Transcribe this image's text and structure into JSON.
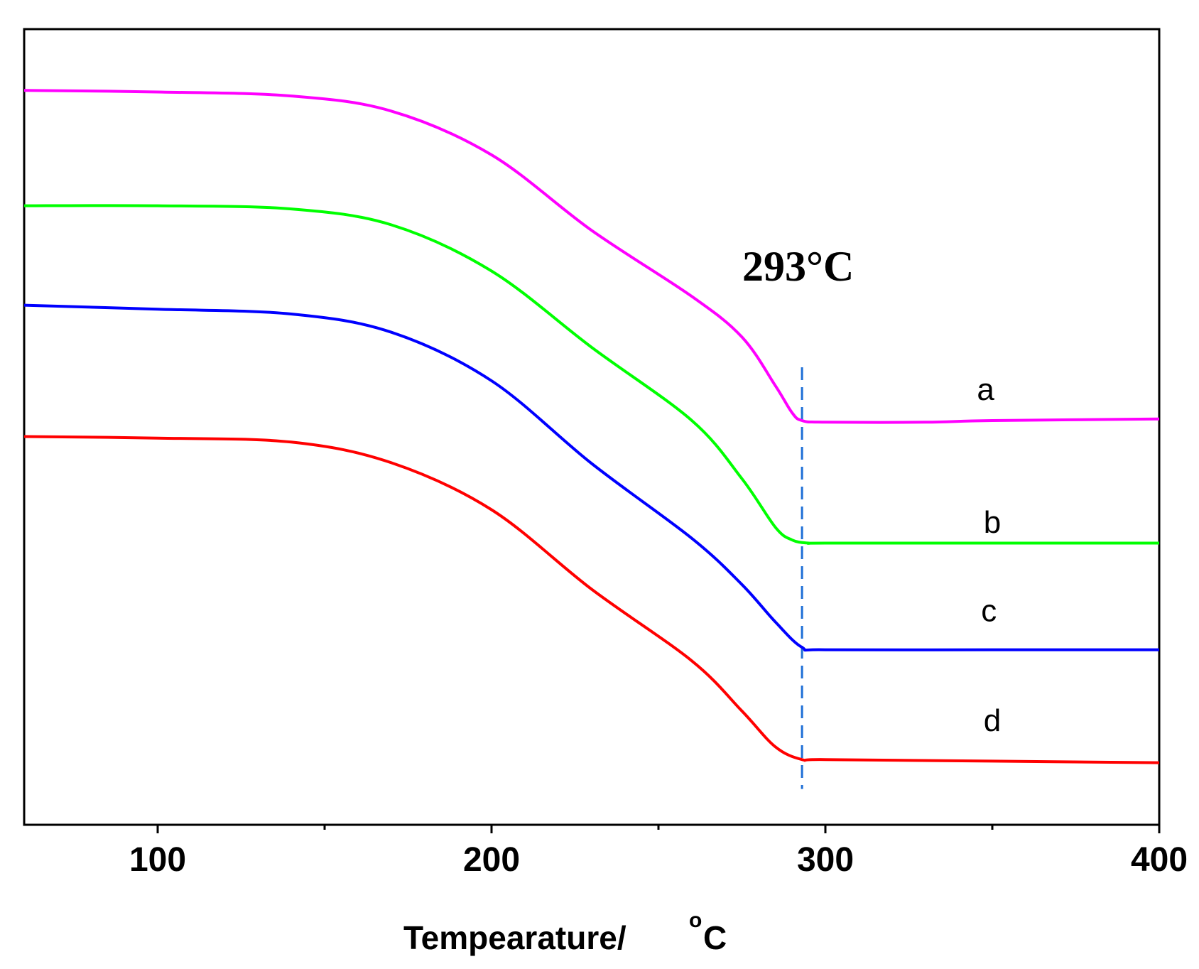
{
  "chart_data": {
    "type": "line",
    "title": "",
    "xlabel": "Tempearature/",
    "xlabel_unit_sup": "o",
    "xlabel_unit": "C",
    "ylabel": "",
    "xlim": [
      60,
      400
    ],
    "ylim": [
      0,
      100
    ],
    "x_ticks": [
      100,
      200,
      300,
      400
    ],
    "x_tick_labels": [
      "100",
      "200",
      "300",
      "400"
    ],
    "x_minor_ticks": [
      150,
      250,
      350
    ],
    "grid": false,
    "annotation": {
      "text": "293°C",
      "x": 293
    },
    "series": [
      {
        "name": "a",
        "color": "#ff00ff",
        "points": [
          [
            60,
            92.3
          ],
          [
            100,
            92.1
          ],
          [
            140,
            91.6
          ],
          [
            170,
            89.7
          ],
          [
            200,
            84.2
          ],
          [
            230,
            74.7
          ],
          [
            260,
            66.4
          ],
          [
            275,
            61.3
          ],
          [
            285,
            55.2
          ],
          [
            290,
            51.8
          ],
          [
            293,
            50.8
          ],
          [
            300,
            50.6
          ],
          [
            330,
            50.6
          ],
          [
            350,
            50.8
          ],
          [
            400,
            51.0
          ]
        ]
      },
      {
        "name": "b",
        "color": "#00ff00",
        "points": [
          [
            60,
            77.8
          ],
          [
            100,
            77.8
          ],
          [
            140,
            77.4
          ],
          [
            170,
            75.4
          ],
          [
            200,
            69.6
          ],
          [
            230,
            60.0
          ],
          [
            260,
            50.8
          ],
          [
            275,
            43.5
          ],
          [
            285,
            37.4
          ],
          [
            290,
            35.8
          ],
          [
            295,
            35.4
          ],
          [
            300,
            35.4
          ],
          [
            350,
            35.4
          ],
          [
            400,
            35.4
          ]
        ]
      },
      {
        "name": "c",
        "color": "#0000ff",
        "points": [
          [
            60,
            65.3
          ],
          [
            100,
            64.8
          ],
          [
            140,
            64.2
          ],
          [
            170,
            61.9
          ],
          [
            200,
            55.8
          ],
          [
            230,
            45.4
          ],
          [
            260,
            36.0
          ],
          [
            275,
            30.2
          ],
          [
            285,
            25.5
          ],
          [
            293,
            22.3
          ],
          [
            300,
            22.0
          ],
          [
            350,
            22.0
          ],
          [
            400,
            22.0
          ]
        ]
      },
      {
        "name": "d",
        "color": "#ff0000",
        "points": [
          [
            60,
            48.8
          ],
          [
            100,
            48.6
          ],
          [
            140,
            48.1
          ],
          [
            170,
            45.5
          ],
          [
            200,
            39.6
          ],
          [
            230,
            29.6
          ],
          [
            260,
            20.6
          ],
          [
            275,
            14.3
          ],
          [
            285,
            9.8
          ],
          [
            293,
            8.2
          ],
          [
            300,
            8.2
          ],
          [
            350,
            8.0
          ],
          [
            400,
            7.8
          ]
        ]
      }
    ],
    "vline": {
      "x": 293,
      "y_range": [
        4.5,
        57.5
      ],
      "color": "#1f6fd6",
      "style": "dashed"
    },
    "series_label_positions": [
      {
        "name": "a",
        "x": 348,
        "y": 53.4
      },
      {
        "name": "b",
        "x": 350,
        "y": 36.7
      },
      {
        "name": "c",
        "x": 349,
        "y": 25.6
      },
      {
        "name": "d",
        "x": 350,
        "y": 11.8
      }
    ]
  }
}
